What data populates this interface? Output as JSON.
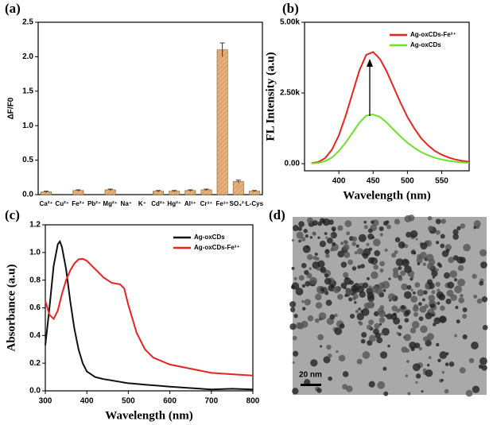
{
  "chart_data": [
    {
      "type": "bar",
      "label": "(a)",
      "y_label": "ΔF/F0",
      "categories": [
        "Ca²⁺",
        "Cu²⁺",
        "Fe²⁺",
        "Pb²⁺",
        "Mg²⁺",
        "Na⁺",
        "K⁺",
        "Cd²⁺",
        "Hg²⁺",
        "Al³⁺",
        "Cr³⁺",
        "Fe³⁺",
        "SO₄²⁻",
        "L-Cys"
      ],
      "values": [
        0.04,
        0,
        0.06,
        0,
        0.07,
        0,
        0,
        0.05,
        0.05,
        0.06,
        0.07,
        2.1,
        0.19,
        0.05
      ],
      "errors": [
        0.01,
        0,
        0.01,
        0,
        0.01,
        0,
        0,
        0.01,
        0.01,
        0.01,
        0.01,
        0.1,
        0.02,
        0.01
      ],
      "color": "#e8b07a",
      "ylim": [
        0,
        2.5
      ],
      "yticks": [
        {
          "value": 0,
          "label": "0.0"
        },
        {
          "value": 0.5,
          "label": "0.5"
        },
        {
          "value": 1,
          "label": "1.0"
        },
        {
          "value": 1.5,
          "label": "1.5"
        },
        {
          "value": 2,
          "label": "2.0"
        },
        {
          "value": 2.5,
          "label": "2.5"
        }
      ]
    },
    {
      "type": "line",
      "label": "(b)",
      "x_label": "Wavelength (nm)",
      "y_label": "FL Intensity (a.u)",
      "legend": "upper right",
      "x": [
        360,
        370,
        380,
        390,
        400,
        410,
        420,
        430,
        440,
        450,
        460,
        470,
        480,
        490,
        500,
        510,
        520,
        530,
        540,
        550,
        560,
        570,
        580,
        590
      ],
      "series": [
        {
          "name": "Ag-oxCDs-Fe³⁺",
          "color": "#e8231e",
          "values": [
            20,
            60,
            200,
            500,
            1000,
            1700,
            2500,
            3300,
            3850,
            3950,
            3700,
            3250,
            2700,
            2150,
            1650,
            1250,
            900,
            650,
            450,
            320,
            220,
            150,
            100,
            70
          ]
        },
        {
          "name": "Ag-oxCDs",
          "color": "#6fe02a",
          "values": [
            10,
            30,
            90,
            220,
            450,
            750,
            1100,
            1450,
            1700,
            1740,
            1650,
            1450,
            1200,
            960,
            740,
            560,
            410,
            300,
            210,
            150,
            100,
            70,
            45,
            30
          ]
        }
      ],
      "xlim": [
        350,
        590
      ],
      "xticks": [
        400,
        450,
        500,
        550
      ],
      "ylim": [
        -250,
        5000
      ],
      "yticks": [
        {
          "value": 0,
          "label": "0.00"
        },
        {
          "value": 2500,
          "label": "2.50k"
        },
        {
          "value": 5000,
          "label": "5.00k"
        }
      ]
    },
    {
      "type": "line",
      "label": "(c)",
      "x_label": "Wavelength (nm)",
      "y_label": "Absorbance (a.u)",
      "legend": "upper right",
      "x": [
        300,
        310,
        320,
        330,
        335,
        340,
        350,
        360,
        370,
        380,
        390,
        400,
        420,
        440,
        460,
        480,
        490,
        500,
        520,
        540,
        560,
        600,
        650,
        700,
        750,
        800
      ],
      "series": [
        {
          "name": "Ag-oxCDs",
          "color": "#111111",
          "values": [
            0.33,
            0.6,
            0.9,
            1.06,
            1.08,
            1.04,
            0.88,
            0.65,
            0.45,
            0.3,
            0.2,
            0.14,
            0.1,
            0.085,
            0.075,
            0.065,
            0.06,
            0.055,
            0.05,
            0.045,
            0.04,
            0.03,
            0.02,
            0.01,
            0.015,
            0.01
          ]
        },
        {
          "name": "Ag-oxCDs-Fe³⁺",
          "color": "#e8231e",
          "values": [
            0.65,
            0.55,
            0.52,
            0.58,
            0.64,
            0.7,
            0.8,
            0.87,
            0.92,
            0.95,
            0.955,
            0.94,
            0.88,
            0.82,
            0.78,
            0.77,
            0.74,
            0.62,
            0.42,
            0.3,
            0.24,
            0.19,
            0.16,
            0.13,
            0.12,
            0.11
          ]
        }
      ],
      "xlim": [
        300,
        800
      ],
      "xticks": [
        300,
        400,
        500,
        600,
        700,
        800
      ],
      "ylim": [
        0,
        1.2
      ],
      "yticks": [
        {
          "value": 0,
          "label": "0.0"
        },
        {
          "value": 0.2,
          "label": "0.2"
        },
        {
          "value": 0.4,
          "label": "0.4"
        },
        {
          "value": 0.6,
          "label": "0.6"
        },
        {
          "value": 0.8,
          "label": "0.8"
        },
        {
          "value": 1,
          "label": "1.0"
        },
        {
          "value": 1.2,
          "label": "1.2"
        }
      ]
    },
    {
      "type": "image",
      "label": "(d)",
      "scale_bar": "20 nm"
    }
  ]
}
